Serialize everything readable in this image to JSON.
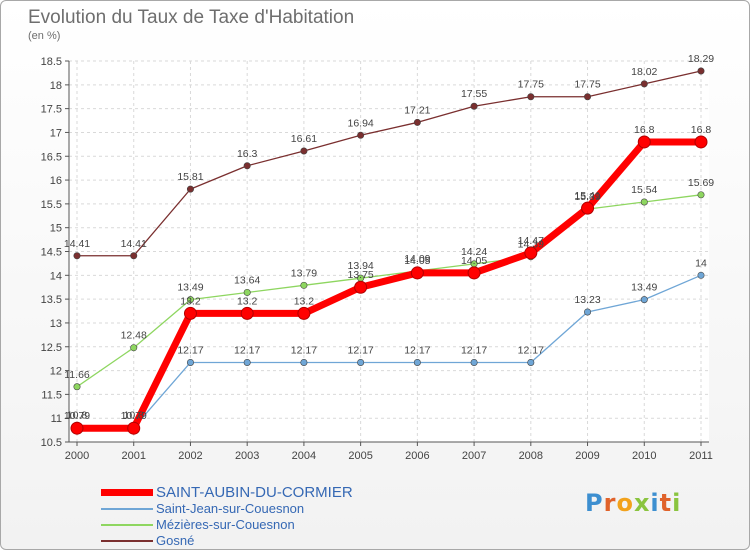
{
  "title": "Evolution du Taux de Taxe d'Habitation",
  "subtitle": "(en %)",
  "logo": {
    "letters": [
      {
        "ch": "P",
        "color": "#3d8fd0"
      },
      {
        "ch": "r",
        "color": "#e0622a"
      },
      {
        "ch": "o",
        "color": "#f2a21c"
      },
      {
        "ch": "x",
        "color": "#8ac43f"
      },
      {
        "ch": "i",
        "color": "#3d8fd0"
      },
      {
        "ch": "t",
        "color": "#e0622a"
      },
      {
        "ch": "i",
        "color": "#8ac43f"
      }
    ]
  },
  "chart_data": {
    "type": "line",
    "title": "Evolution du Taux de Taxe d'Habitation",
    "ylabel": "(en %)",
    "x": [
      "2000",
      "2001",
      "2002",
      "2003",
      "2004",
      "2005",
      "2006",
      "2007",
      "2008",
      "2009",
      "2010",
      "2011"
    ],
    "yticks": [
      "10.5",
      "11",
      "11.5",
      "12",
      "12.5",
      "13",
      "13.5",
      "14",
      "14.5",
      "15",
      "15.5",
      "16",
      "16.5",
      "17",
      "17.5",
      "18",
      "18.5"
    ],
    "ylim": [
      10.5,
      18.5
    ],
    "grid": true,
    "legend_position": "bottom-left",
    "series": [
      {
        "name": "SAINT-AUBIN-DU-CORMIER",
        "color": "#ff0000",
        "bold": true,
        "values": [
          10.79,
          10.79,
          13.2,
          13.2,
          13.2,
          13.75,
          14.05,
          14.05,
          14.47,
          15.41,
          16.8,
          16.8
        ],
        "labels": [
          "10.79",
          "10.79",
          "13.2",
          "13.2",
          "13.2",
          "13.75",
          "14.05",
          "14.05",
          "14.47",
          "15.41",
          "16.8",
          "16.8"
        ]
      },
      {
        "name": "Saint-Jean-sur-Couesnon",
        "color": "#6fa6d6",
        "values": [
          10.8,
          10.8,
          12.17,
          12.17,
          12.17,
          12.17,
          12.17,
          12.17,
          12.17,
          13.23,
          13.49,
          14
        ],
        "labels": [
          "10.8",
          "10.8",
          "12.17",
          "12.17",
          "12.17",
          "12.17",
          "12.17",
          "12.17",
          "12.17",
          "13.23",
          "13.49",
          "14"
        ]
      },
      {
        "name": "Mézières-sur-Couesnon",
        "color": "#8ed660",
        "values": [
          11.66,
          12.48,
          13.49,
          13.64,
          13.79,
          13.94,
          14.09,
          14.24,
          14.39,
          15.39,
          15.54,
          15.69
        ],
        "labels": [
          "11.66",
          "12.48",
          "13.49",
          "13.64",
          "13.79",
          "13.94",
          "14.09",
          "14.24",
          "14.39",
          "15.39",
          "15.54",
          "15.69"
        ]
      },
      {
        "name": "Gosné",
        "color": "#7a2f2f",
        "values": [
          14.41,
          14.41,
          15.81,
          16.3,
          16.61,
          16.94,
          17.21,
          17.55,
          17.75,
          17.75,
          18.02,
          18.29
        ],
        "labels": [
          "14.41",
          "14.41",
          "15.81",
          "16.3",
          "16.61",
          "16.94",
          "17.21",
          "17.55",
          "17.75",
          "17.75",
          "18.02",
          "18.29"
        ]
      }
    ]
  }
}
